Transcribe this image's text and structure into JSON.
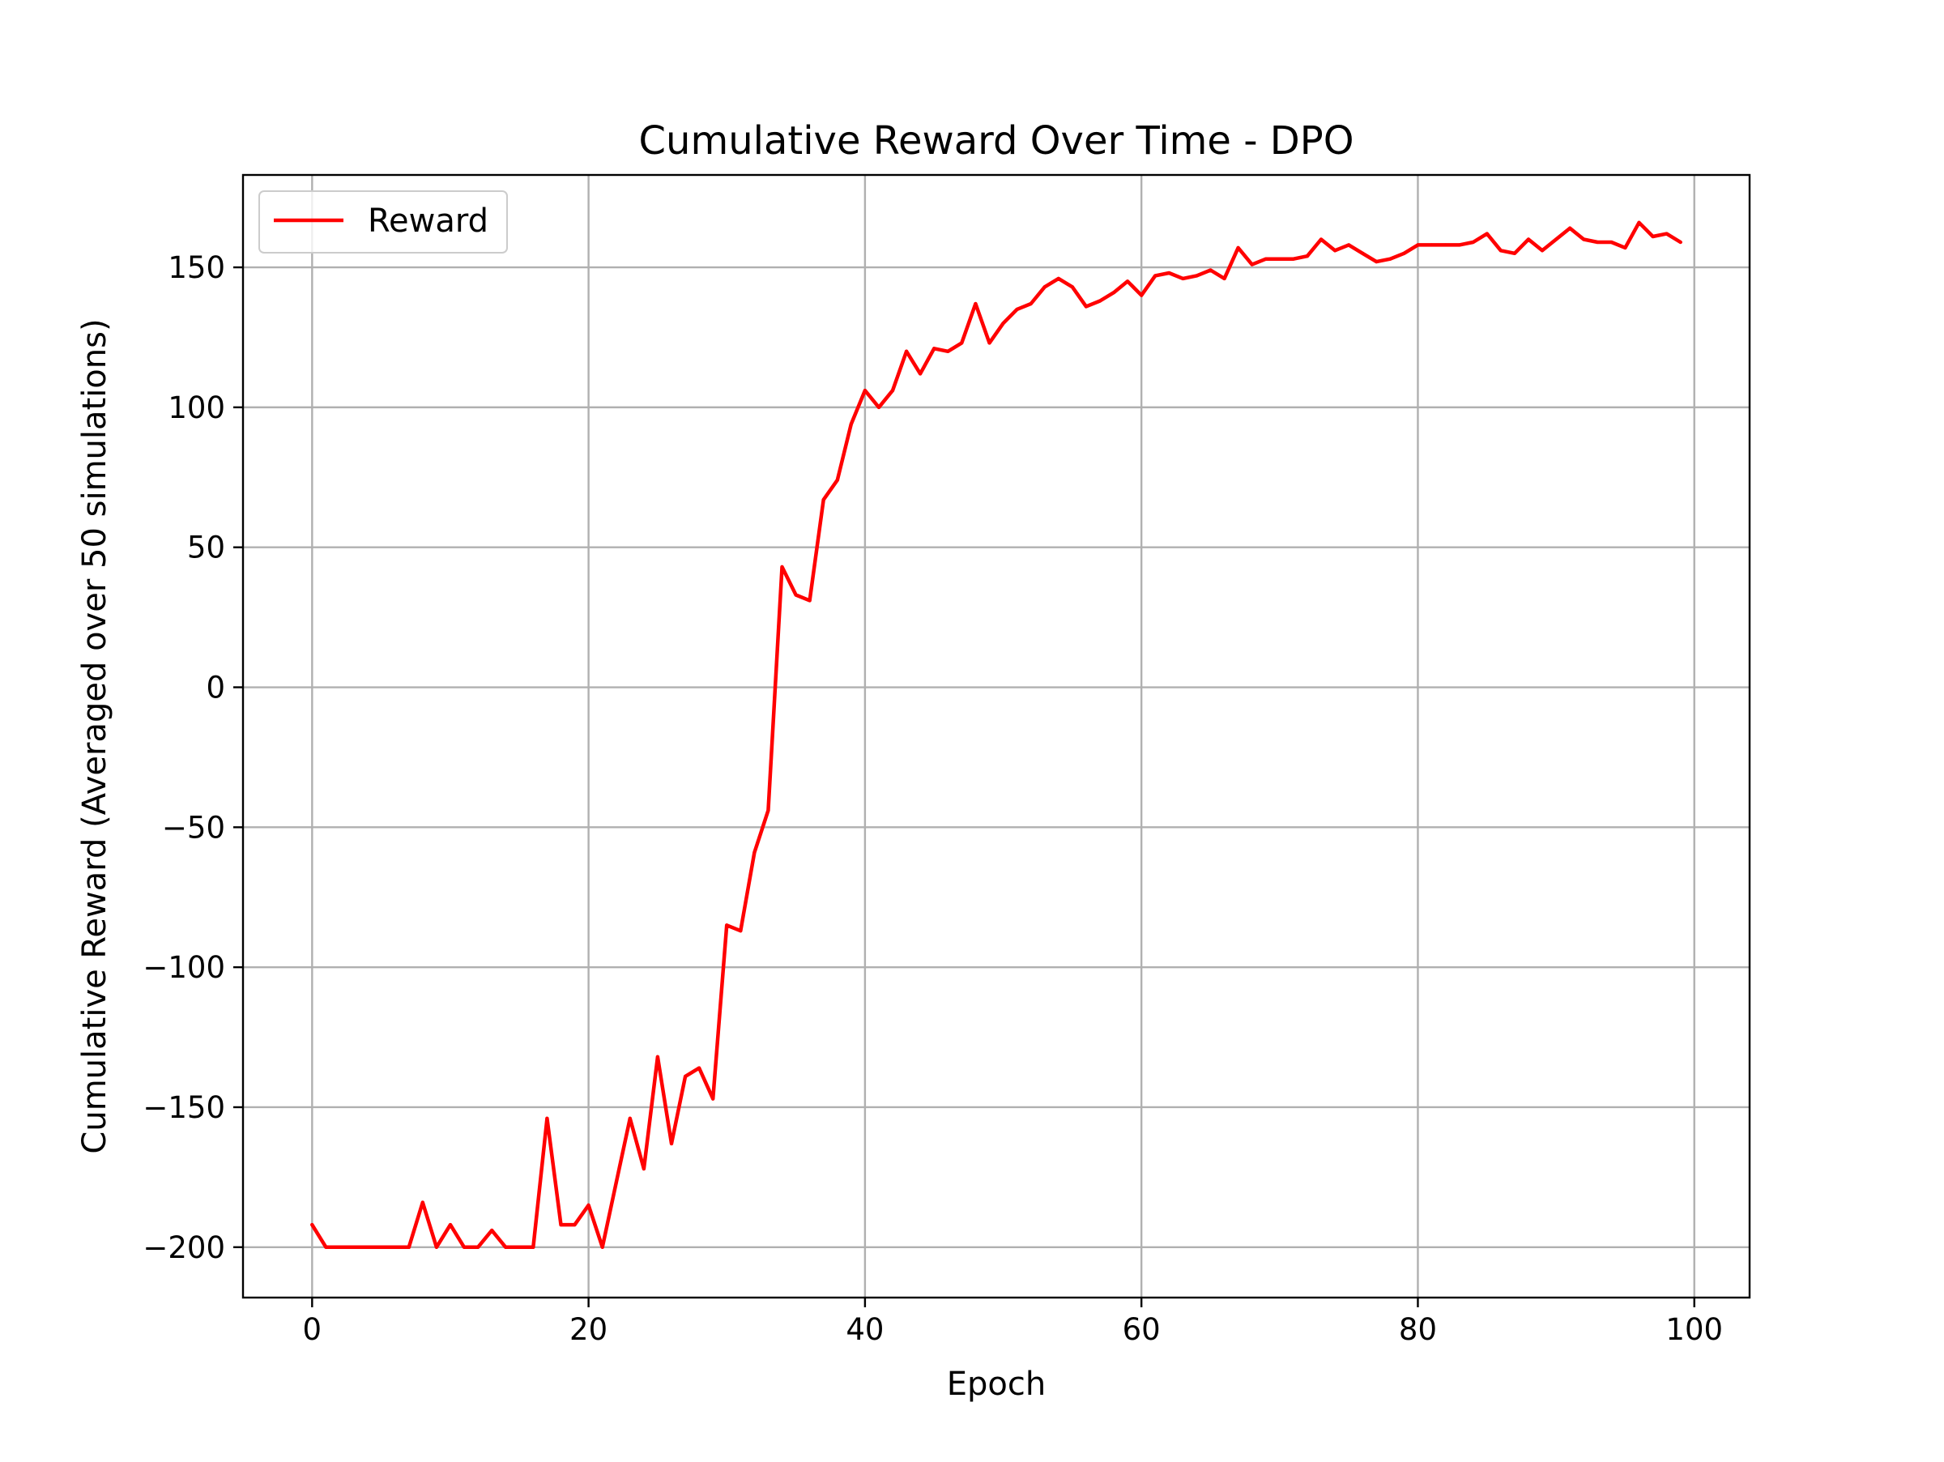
{
  "chart_data": {
    "type": "line",
    "title": "Cumulative Reward Over Time - DPO",
    "xlabel": "Epoch",
    "ylabel": "Cumulative Reward (Averaged over 50 simulations)",
    "xlim": [
      -5,
      104
    ],
    "ylim": [
      -218,
      183
    ],
    "xticks": [
      0,
      20,
      40,
      60,
      80,
      100
    ],
    "yticks": [
      -200,
      -150,
      -100,
      -50,
      0,
      50,
      100,
      150
    ],
    "xtick_labels": [
      "0",
      "20",
      "40",
      "60",
      "80",
      "100"
    ],
    "ytick_labels": [
      "−200",
      "−150",
      "−100",
      "−50",
      "0",
      "50",
      "100",
      "150"
    ],
    "grid": true,
    "legend_position": "upper-left",
    "series": [
      {
        "name": "Reward",
        "color": "#ff0000",
        "x": [
          0,
          1,
          2,
          3,
          4,
          5,
          6,
          7,
          8,
          9,
          10,
          11,
          12,
          13,
          14,
          15,
          16,
          17,
          18,
          19,
          20,
          21,
          22,
          23,
          24,
          25,
          26,
          27,
          28,
          29,
          30,
          31,
          32,
          33,
          34,
          35,
          36,
          37,
          38,
          39,
          40,
          41,
          42,
          43,
          44,
          45,
          46,
          47,
          48,
          49,
          50,
          51,
          52,
          53,
          54,
          55,
          56,
          57,
          58,
          59,
          60,
          61,
          62,
          63,
          64,
          65,
          66,
          67,
          68,
          69,
          70,
          71,
          72,
          73,
          74,
          75,
          76,
          77,
          78,
          79,
          80,
          81,
          82,
          83,
          84,
          85,
          86,
          87,
          88,
          89,
          90,
          91,
          92,
          93,
          94,
          95,
          96,
          97,
          98,
          99
        ],
        "values": [
          -192,
          -200,
          -200,
          -200,
          -200,
          -200,
          -200,
          -200,
          -184,
          -200,
          -192,
          -200,
          -200,
          -194,
          -200,
          -200,
          -200,
          -154,
          -192,
          -192,
          -185,
          -200,
          -177,
          -154,
          -172,
          -132,
          -163,
          -139,
          -136,
          -147,
          -85,
          -87,
          -59,
          -44,
          43,
          33,
          31,
          67,
          74,
          94,
          106,
          100,
          106,
          120,
          112,
          121,
          120,
          123,
          137,
          123,
          130,
          135,
          137,
          143,
          146,
          143,
          136,
          138,
          141,
          145,
          140,
          147,
          148,
          146,
          147,
          149,
          146,
          157,
          151,
          153,
          153,
          153,
          154,
          160,
          156,
          158,
          155,
          152,
          153,
          155,
          158,
          158,
          158,
          158,
          159,
          162,
          156,
          155,
          160,
          156,
          160,
          164,
          160,
          159,
          159,
          157,
          166,
          161,
          162,
          159
        ]
      }
    ]
  }
}
